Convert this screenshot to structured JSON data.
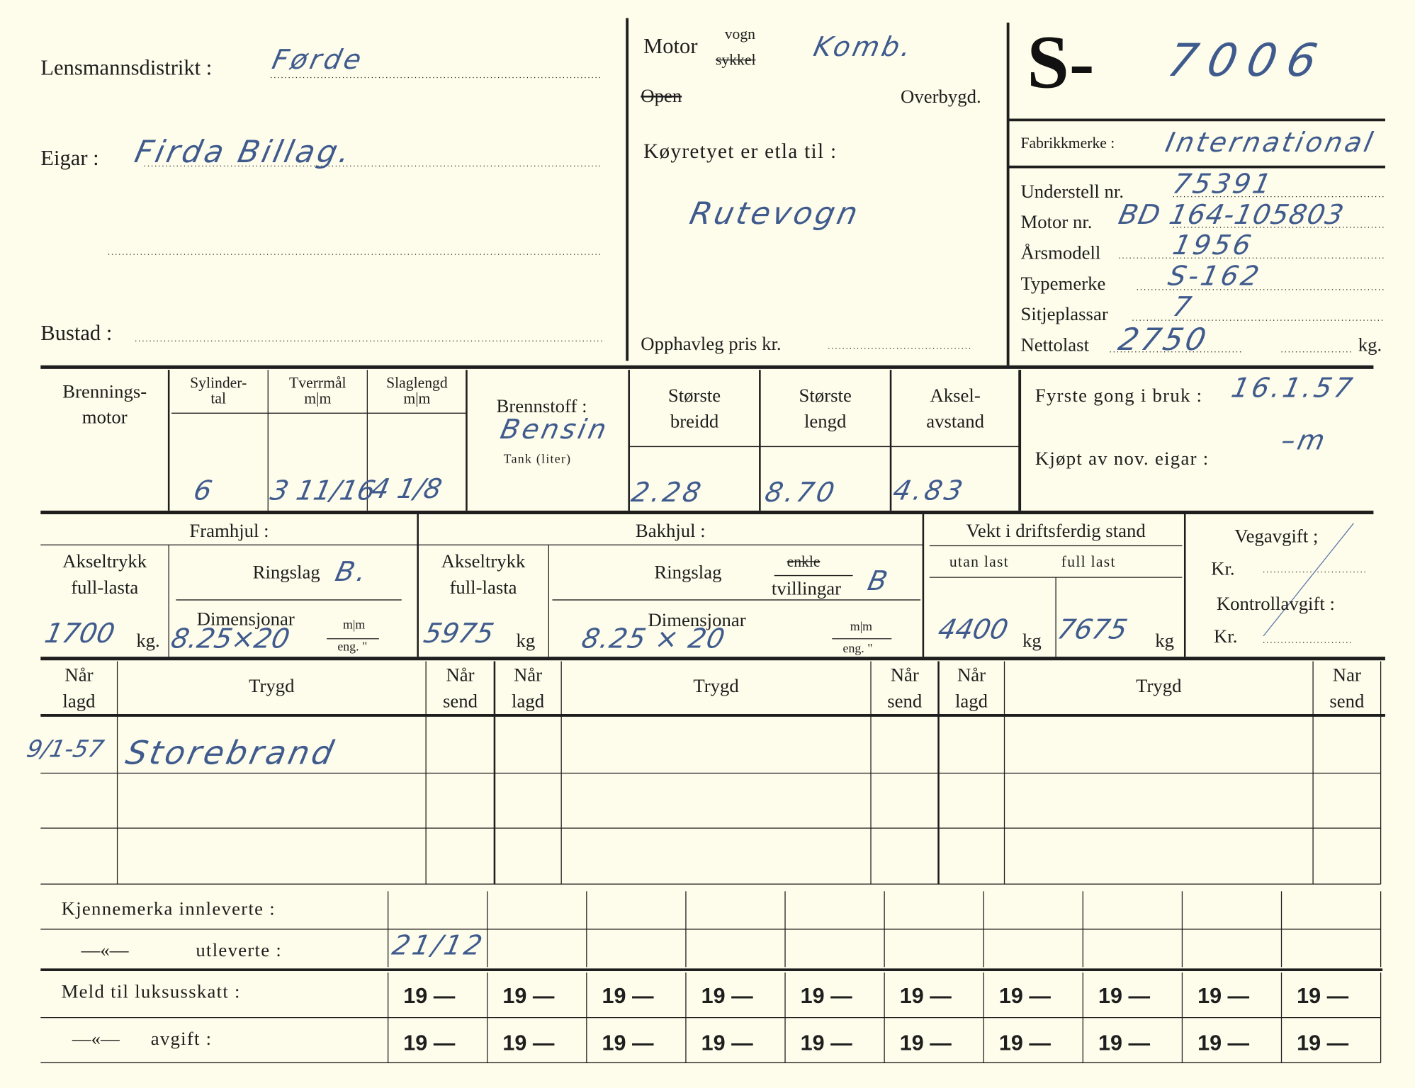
{
  "header": {
    "district_label": "Lensmannsdistrikt :",
    "district_value": "Førde",
    "owner_label": "Eigar :",
    "owner_value": "Firda Billag.",
    "address_label": "Bustad :",
    "motor_label": "Motor",
    "vogn": "vogn",
    "sykkel": "sykkel",
    "motor_value": "Komb.",
    "open_label": "Open",
    "overbygd_label": "Overbygd.",
    "purpose_label": "Køyretyet er etla til :",
    "purpose_value": "Rutevogn",
    "price_label": "Opphavleg pris kr.",
    "reg_prefix": "S-",
    "reg_number": "7006"
  },
  "specs": {
    "make_label": "Fabrikkmerke :",
    "make_value": "International",
    "chassis_label": "Understell nr.",
    "chassis_value": "75391",
    "engine_label": "Motor nr.",
    "engine_value": "BD 164-105803",
    "year_label": "Årsmodell",
    "year_value": "1956",
    "type_label": "Typemerke",
    "type_value": "S-162",
    "seats_label": "Sitjeplassar",
    "seats_value": "7",
    "payload_label": "Nettolast",
    "payload_value": "2750",
    "payload_unit": "kg."
  },
  "engine": {
    "motor_label_1": "Brennings-",
    "motor_label_2": "motor",
    "cyl_label_1": "Sylinder-",
    "cyl_label_2": "tal",
    "cyl_value": "6",
    "bore_label_1": "Tverrmål",
    "bore_label_2": "m|m",
    "bore_value": "3 11/16",
    "stroke_label_1": "Slaglengd",
    "stroke_label_2": "m|m",
    "stroke_value": "4 1/8",
    "fuel_label": "Brennstoff :",
    "fuel_value": "Bensin",
    "tank_label": "Tank (liter)",
    "width_label_1": "Største",
    "width_label_2": "breidd",
    "width_value": "2.28",
    "length_label_1": "Største",
    "length_label_2": "lengd",
    "length_value": "8.70",
    "wheelbase_label_1": "Aksel-",
    "wheelbase_label_2": "avstand",
    "wheelbase_value": "4.83",
    "first_use_label": "Fyrste gong i bruk :",
    "first_use_value": "16.1.57",
    "bought_label": "Kjøpt av nov. eigar :",
    "bought_value": "–m"
  },
  "wheels": {
    "front_label": "Framhjul :",
    "rear_label": "Bakhjul :",
    "weight_label": "Vekt i driftsferdig stand",
    "axle_label_1": "Akseltrykk",
    "axle_label_2": "full-lasta",
    "front_axle_value": "1700",
    "front_axle_unit": "kg.",
    "ring_label": "Ringslag",
    "front_ring_value": "B.",
    "dim_label": "Dimensjonar",
    "front_dim_value": "8.25×20",
    "mm_label": "m|m",
    "eng_label": "eng. \"",
    "rear_axle_value": "5975",
    "rear_axle_unit": "kg",
    "enkle_label": "enkle",
    "tvillingar_label": "tvillingar",
    "rear_ring_value": "B",
    "rear_dim_value": "8.25 × 20",
    "empty_label": "utan last",
    "full_label": "full last",
    "empty_value": "4400",
    "empty_unit": "kg",
    "full_value": "7675",
    "full_unit": "kg",
    "road_tax_label": "Vegavgift ;",
    "kr_label": "Kr.",
    "control_fee_label": "Kontrollavgift :"
  },
  "insurance": {
    "when_lagd_1": "Når",
    "when_lagd_2": "lagd",
    "trygd": "Trygd",
    "when_send_1": "Når",
    "when_send_2": "send",
    "last_send_1": "Nar",
    "entry_date": "9/1-57",
    "entry_company": "Storebrand"
  },
  "plates": {
    "handed_in_label": "Kjennemerka innleverte :",
    "ditto": "—«—",
    "handed_out_label": "utleverte :",
    "handed_out_value": "21/12",
    "luxury_label": "Meld til luksusskatt :",
    "fee_label": "avgift :",
    "year_cell": "19 —"
  }
}
